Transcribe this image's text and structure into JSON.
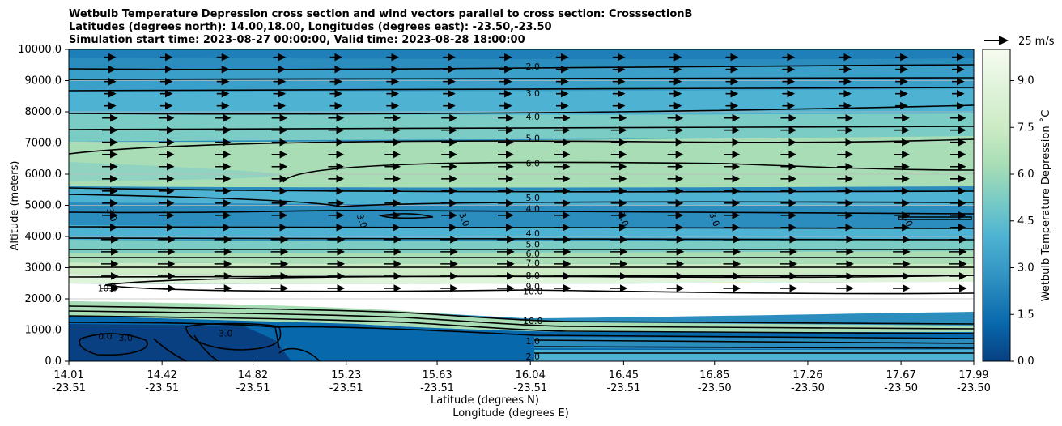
{
  "chart_data": {
    "type": "contour",
    "title_lines": [
      "Wetbulb Temperature Depression cross section and wind vectors parallel to cross section: CrosssectionB",
      "Latitudes (degrees north): 14.00,18.00, Longitudes (degrees east): -23.50,-23.50",
      "Simulation start time: 2023-08-27 00:00:00, Valid time: 2023-08-28 18:00:00"
    ],
    "ylabel": "Altitude (meters)",
    "xlabel": "Latitude (degrees N)",
    "xlabel2": "Longitude (degrees E)",
    "ylim": [
      0,
      10000
    ],
    "y_ticks": [
      "0.0",
      "1000.0",
      "2000.0",
      "3000.0",
      "4000.0",
      "5000.0",
      "6000.0",
      "7000.0",
      "8000.0",
      "9000.0",
      "10000.0"
    ],
    "x_ticks": [
      {
        "lat": "14.01",
        "lon": "-23.51"
      },
      {
        "lat": "14.42",
        "lon": "-23.51"
      },
      {
        "lat": "14.82",
        "lon": "-23.51"
      },
      {
        "lat": "15.23",
        "lon": "-23.51"
      },
      {
        "lat": "15.63",
        "lon": "-23.51"
      },
      {
        "lat": "16.04",
        "lon": "-23.51"
      },
      {
        "lat": "16.45",
        "lon": "-23.51"
      },
      {
        "lat": "16.85",
        "lon": "-23.50"
      },
      {
        "lat": "17.26",
        "lon": "-23.50"
      },
      {
        "lat": "17.67",
        "lon": "-23.50"
      },
      {
        "lat": "17.99",
        "lon": "-23.50"
      }
    ],
    "colorbar": {
      "label": "Wetbulb Temperature Depression ˚C",
      "range": [
        0,
        10
      ],
      "ticks": [
        "0.0",
        "1.5",
        "3.0",
        "4.5",
        "6.0",
        "7.5",
        "9.0"
      ],
      "colormap": [
        "#084081",
        "#0868ac",
        "#2b8cbe",
        "#4eb3d3",
        "#7bccc4",
        "#a8ddb5",
        "#ccebc5",
        "#e0f3db",
        "#f7fcf0"
      ]
    },
    "quiver_key": "25 m/s",
    "contour_levels_labeled": [
      {
        "label": "2.0",
        "alt": 9450
      },
      {
        "label": "3.0",
        "alt": 8600
      },
      {
        "label": "4.0",
        "alt": 7850
      },
      {
        "label": "5.0",
        "alt": 7150
      },
      {
        "label": "6.0",
        "alt": 6350
      },
      {
        "label": "5.0",
        "alt": 5250
      },
      {
        "label": "4.0",
        "alt": 4900
      },
      {
        "label": "4.0",
        "alt": 4100
      },
      {
        "label": "5.0",
        "alt": 3750
      },
      {
        "label": "6.0",
        "alt": 3450
      },
      {
        "label": "7.0",
        "alt": 3150
      },
      {
        "label": "8.0",
        "alt": 2750
      },
      {
        "label": "9.0",
        "alt": 2400
      },
      {
        "label": "10.0",
        "alt": 2250
      },
      {
        "label": "10.0",
        "alt": 1300
      },
      {
        "label": "1.0",
        "alt": 650
      },
      {
        "label": "2.0",
        "alt": 150
      }
    ],
    "inline_labels": [
      {
        "label": "3.0",
        "lat": 14.2,
        "alt": 4700
      },
      {
        "label": "3.0",
        "lat": 15.3,
        "alt": 4500
      },
      {
        "label": "3.0",
        "lat": 15.75,
        "alt": 4550
      },
      {
        "label": "3.0",
        "lat": 16.45,
        "alt": 4550
      },
      {
        "label": "3.0",
        "lat": 16.85,
        "alt": 4550
      },
      {
        "label": "3.0",
        "lat": 17.7,
        "alt": 4550
      },
      {
        "label": "0.0",
        "lat": 14.17,
        "alt": 800
      },
      {
        "label": "3.0",
        "lat": 14.26,
        "alt": 750
      },
      {
        "label": "3.0",
        "lat": 14.7,
        "alt": 900
      },
      {
        "label": "10.0",
        "lat": 14.18,
        "alt": 2350
      }
    ]
  }
}
